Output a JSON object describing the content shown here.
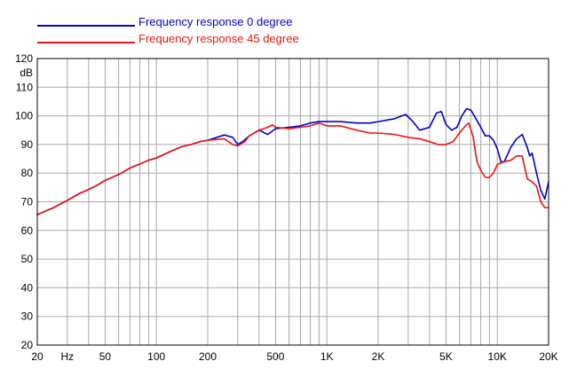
{
  "chart_data": {
    "type": "line",
    "title": "",
    "xlabel": "",
    "ylabel": "dB",
    "x_scale": "log",
    "xlim": [
      20,
      20000
    ],
    "ylim": [
      20,
      120
    ],
    "grid": true,
    "legend_position": "top-left",
    "x_tick_labels": [
      {
        "value": 20,
        "label": "20"
      },
      {
        "value": 30,
        "label": "Hz"
      },
      {
        "value": 50,
        "label": "50"
      },
      {
        "value": 100,
        "label": "100"
      },
      {
        "value": 200,
        "label": "200"
      },
      {
        "value": 500,
        "label": "500"
      },
      {
        "value": 1000,
        "label": "1K"
      },
      {
        "value": 2000,
        "label": "2K"
      },
      {
        "value": 5000,
        "label": "5K"
      },
      {
        "value": 10000,
        "label": "10K"
      },
      {
        "value": 20000,
        "label": "20K"
      }
    ],
    "y_ticks": [
      20,
      30,
      40,
      50,
      60,
      70,
      80,
      90,
      100,
      110,
      120
    ],
    "series": [
      {
        "name": "Frequency response 0 degree",
        "color": "#0000cc",
        "points": [
          [
            20,
            65.5
          ],
          [
            25,
            68
          ],
          [
            30,
            70.5
          ],
          [
            35,
            72.8
          ],
          [
            40,
            74.3
          ],
          [
            45,
            75.8
          ],
          [
            50,
            77.5
          ],
          [
            60,
            79.5
          ],
          [
            70,
            81.8
          ],
          [
            80,
            83.2
          ],
          [
            90,
            84.5
          ],
          [
            100,
            85.3
          ],
          [
            120,
            87.5
          ],
          [
            140,
            89.2
          ],
          [
            160,
            90
          ],
          [
            180,
            91
          ],
          [
            200,
            91.5
          ],
          [
            250,
            93.3
          ],
          [
            280,
            92.5
          ],
          [
            300,
            90
          ],
          [
            320,
            91
          ],
          [
            350,
            93
          ],
          [
            400,
            95
          ],
          [
            450,
            93.5
          ],
          [
            500,
            95.5
          ],
          [
            600,
            96
          ],
          [
            700,
            96.5
          ],
          [
            800,
            97.5
          ],
          [
            900,
            98
          ],
          [
            1000,
            98
          ],
          [
            1200,
            98
          ],
          [
            1500,
            97.5
          ],
          [
            1800,
            97.5
          ],
          [
            2000,
            98
          ],
          [
            2500,
            99
          ],
          [
            2900,
            100.5
          ],
          [
            3200,
            98
          ],
          [
            3500,
            95
          ],
          [
            4000,
            96
          ],
          [
            4400,
            101
          ],
          [
            4700,
            101.5
          ],
          [
            5000,
            97
          ],
          [
            5400,
            95
          ],
          [
            5800,
            96
          ],
          [
            6200,
            100
          ],
          [
            6600,
            102.5
          ],
          [
            7000,
            102
          ],
          [
            7500,
            99
          ],
          [
            8000,
            96
          ],
          [
            8500,
            93
          ],
          [
            9000,
            93
          ],
          [
            9500,
            91.5
          ],
          [
            10000,
            88.5
          ],
          [
            10500,
            84
          ],
          [
            11000,
            84
          ],
          [
            12000,
            89
          ],
          [
            13000,
            92
          ],
          [
            14000,
            93.5
          ],
          [
            15000,
            89
          ],
          [
            15500,
            86
          ],
          [
            16000,
            87
          ],
          [
            17000,
            80
          ],
          [
            18000,
            74
          ],
          [
            19000,
            71
          ],
          [
            20000,
            77
          ]
        ]
      },
      {
        "name": "Frequency response 45 degree",
        "color": "#ee1111",
        "points": [
          [
            20,
            65.5
          ],
          [
            25,
            68
          ],
          [
            30,
            70.5
          ],
          [
            35,
            72.8
          ],
          [
            40,
            74.3
          ],
          [
            45,
            75.8
          ],
          [
            50,
            77.5
          ],
          [
            60,
            79.5
          ],
          [
            70,
            81.8
          ],
          [
            80,
            83.2
          ],
          [
            90,
            84.5
          ],
          [
            100,
            85.3
          ],
          [
            120,
            87.5
          ],
          [
            140,
            89.2
          ],
          [
            160,
            90
          ],
          [
            180,
            91
          ],
          [
            200,
            91.5
          ],
          [
            250,
            92
          ],
          [
            280,
            90
          ],
          [
            300,
            89.5
          ],
          [
            330,
            91
          ],
          [
            350,
            93
          ],
          [
            400,
            95
          ],
          [
            450,
            96
          ],
          [
            480,
            96.8
          ],
          [
            500,
            96
          ],
          [
            600,
            95.5
          ],
          [
            700,
            96
          ],
          [
            800,
            96.5
          ],
          [
            900,
            97.5
          ],
          [
            1000,
            96.5
          ],
          [
            1200,
            96.5
          ],
          [
            1500,
            95
          ],
          [
            1800,
            94
          ],
          [
            2000,
            94
          ],
          [
            2500,
            93.5
          ],
          [
            3000,
            92.5
          ],
          [
            3500,
            92
          ],
          [
            4000,
            91
          ],
          [
            4500,
            90
          ],
          [
            5000,
            90
          ],
          [
            5500,
            91
          ],
          [
            6000,
            94
          ],
          [
            6500,
            96.5
          ],
          [
            6800,
            97.5
          ],
          [
            7200,
            93
          ],
          [
            7600,
            84
          ],
          [
            8000,
            81
          ],
          [
            8500,
            78.5
          ],
          [
            9000,
            78.5
          ],
          [
            9500,
            80
          ],
          [
            10000,
            83
          ],
          [
            11000,
            84
          ],
          [
            12000,
            84.5
          ],
          [
            13000,
            86
          ],
          [
            14000,
            86
          ],
          [
            15000,
            78
          ],
          [
            16000,
            77
          ],
          [
            17000,
            75.5
          ],
          [
            18000,
            70
          ],
          [
            19000,
            68
          ],
          [
            20000,
            68
          ]
        ]
      }
    ]
  }
}
